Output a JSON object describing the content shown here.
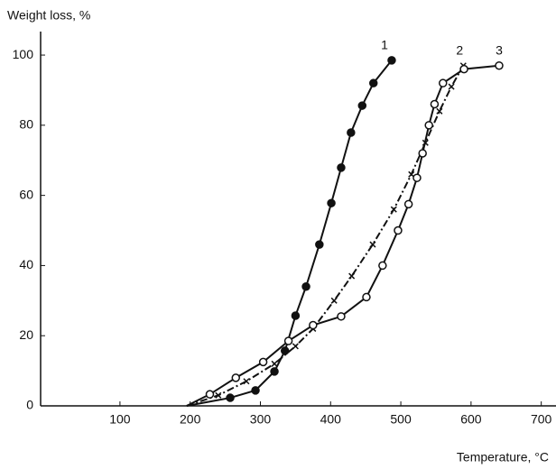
{
  "chart_data": {
    "type": "line",
    "y_label": "Weight loss, %",
    "x_label": "Temperature, °C",
    "xlim": [
      -13,
      721
    ],
    "ylim": [
      0,
      106.7
    ],
    "xticks": [
      100,
      200,
      300,
      400,
      500,
      600,
      700
    ],
    "yticks": [
      0,
      20,
      40,
      60,
      80,
      100
    ],
    "grid": false,
    "series": [
      {
        "name": "1",
        "color": "#111",
        "marker": "filled-circle",
        "dash": false,
        "x": [
          195,
          257,
          293,
          320,
          335,
          350,
          365,
          384,
          401,
          415,
          429,
          445,
          461,
          487
        ],
        "values": [
          0,
          2.3,
          4.4,
          9.8,
          15.7,
          25.7,
          34,
          46,
          57.8,
          67.9,
          77.9,
          85.6,
          92,
          98.5
        ]
      },
      {
        "name": "2",
        "color": "#111",
        "marker": "cross",
        "dash": true,
        "x": [
          195,
          240,
          280,
          320,
          350,
          375,
          405,
          430,
          460,
          490,
          515,
          535,
          555,
          572,
          589
        ],
        "values": [
          0,
          3,
          7,
          12,
          17,
          22,
          30,
          37,
          46,
          56,
          66,
          75,
          84,
          91,
          97
        ]
      },
      {
        "name": "3",
        "color": "#111",
        "marker": "open-circle",
        "dash": false,
        "x": [
          195,
          228,
          265,
          304,
          340,
          375,
          415,
          451,
          474,
          496,
          511,
          523,
          531,
          540,
          548,
          560,
          590,
          640
        ],
        "values": [
          0,
          3.3,
          8,
          12.5,
          18.5,
          23,
          25.5,
          31,
          40,
          50,
          57.5,
          65,
          72,
          80,
          86,
          92,
          96,
          97
        ]
      }
    ]
  }
}
